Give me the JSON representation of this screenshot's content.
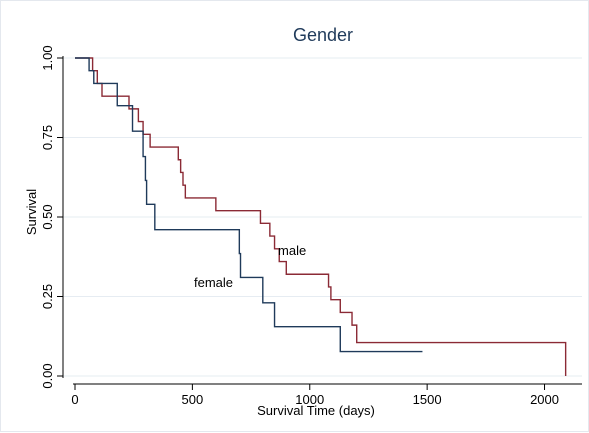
{
  "chart_data": {
    "type": "line",
    "subtype": "kaplan-meier-step",
    "title": "Gender",
    "xlabel": "Survival Time (days)",
    "ylabel": "Survival",
    "xlim": [
      0,
      2100
    ],
    "ylim": [
      0,
      1.0
    ],
    "xticks": [
      0,
      500,
      1000,
      1500,
      2000
    ],
    "xtick_labels": [
      "0",
      "500",
      "1000",
      "1500",
      "2000"
    ],
    "yticks": [
      0,
      0.25,
      0.5,
      0.75,
      1.0
    ],
    "ytick_labels": [
      "0.00",
      "0.25",
      "0.50",
      "0.75",
      "1.00"
    ],
    "grid": {
      "horizontal": true,
      "vertical": false,
      "color": "#e6ecf2"
    },
    "legend": "none",
    "series": [
      {
        "name": "male",
        "color": "#8b2a35",
        "x": [
          0,
          75,
          95,
          115,
          200,
          230,
          260,
          270,
          290,
          320,
          440,
          450,
          460,
          470,
          600,
          790,
          830,
          850,
          870,
          900,
          930,
          1080,
          1090,
          1100,
          1130,
          1180,
          1200,
          2090,
          2090
        ],
        "y": [
          1.0,
          0.96,
          0.92,
          0.88,
          0.88,
          0.84,
          0.84,
          0.8,
          0.76,
          0.72,
          0.68,
          0.64,
          0.6,
          0.56,
          0.52,
          0.48,
          0.44,
          0.4,
          0.36,
          0.32,
          0.32,
          0.28,
          0.24,
          0.24,
          0.2,
          0.16,
          0.105,
          0.105,
          0.0
        ]
      },
      {
        "name": "female",
        "color": "#1f3a5a",
        "x": [
          0,
          60,
          80,
          115,
          180,
          245,
          265,
          290,
          300,
          305,
          340,
          700,
          705,
          720,
          800,
          850,
          1130,
          1480
        ],
        "y": [
          1.0,
          0.96,
          0.92,
          0.92,
          0.85,
          0.77,
          0.77,
          0.69,
          0.615,
          0.54,
          0.46,
          0.385,
          0.31,
          0.31,
          0.23,
          0.155,
          0.077,
          0.077
        ]
      }
    ],
    "annotations": [
      {
        "text": "male",
        "x": 925,
        "y": 0.38
      },
      {
        "text": "female",
        "x": 590,
        "y": 0.28
      }
    ]
  }
}
